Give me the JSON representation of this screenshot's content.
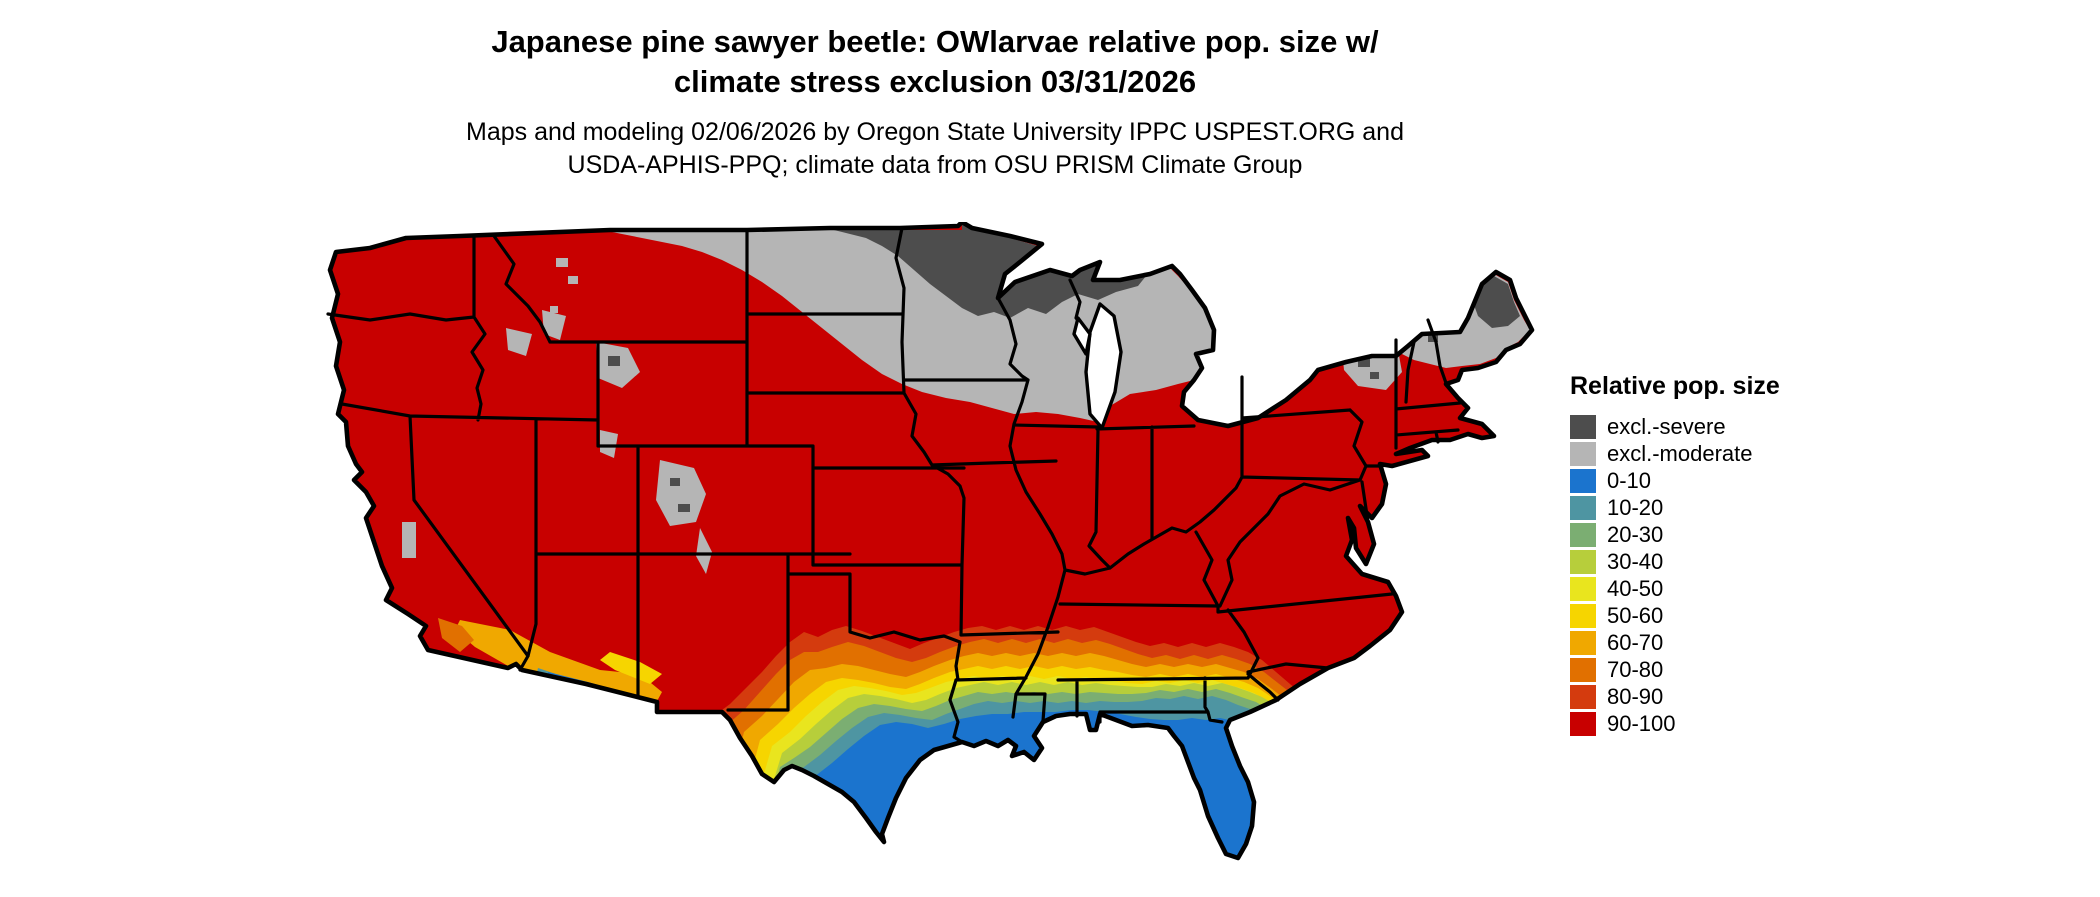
{
  "title": {
    "line1": "Japanese pine sawyer beetle: OWlarvae relative pop. size w/",
    "line2": "climate stress exclusion 03/31/2026"
  },
  "subtitle": {
    "line1": "Maps and modeling 02/06/2026 by Oregon State University IPPC USPEST.ORG and",
    "line2": "USDA-APHIS-PPQ; climate data from OSU PRISM Climate Group"
  },
  "legend": {
    "title": "Relative pop. size",
    "items": [
      {
        "id": "excl-severe",
        "label": "excl.-severe",
        "color": "#4D4D4D"
      },
      {
        "id": "excl-moderate",
        "label": "excl.-moderate",
        "color": "#B5B5B5"
      },
      {
        "id": "r0-10",
        "label": "0-10",
        "color": "#1B74CE"
      },
      {
        "id": "r10-20",
        "label": "10-20",
        "color": "#4E95A2"
      },
      {
        "id": "r20-30",
        "label": "20-30",
        "color": "#7BAE72"
      },
      {
        "id": "r30-40",
        "label": "30-40",
        "color": "#B7CE3B"
      },
      {
        "id": "r40-50",
        "label": "40-50",
        "color": "#E9E51E"
      },
      {
        "id": "r50-60",
        "label": "50-60",
        "color": "#F6D500"
      },
      {
        "id": "r60-70",
        "label": "60-70",
        "color": "#F0A800"
      },
      {
        "id": "r70-80",
        "label": "70-80",
        "color": "#E17000"
      },
      {
        "id": "r80-90",
        "label": "80-90",
        "color": "#D43B0E"
      },
      {
        "id": "r90-100",
        "label": "90-100",
        "color": "#C80000"
      }
    ]
  },
  "map": {
    "region": "Contiguous United States",
    "water_color": "#FFFFFF",
    "boundary_color": "#000000"
  }
}
